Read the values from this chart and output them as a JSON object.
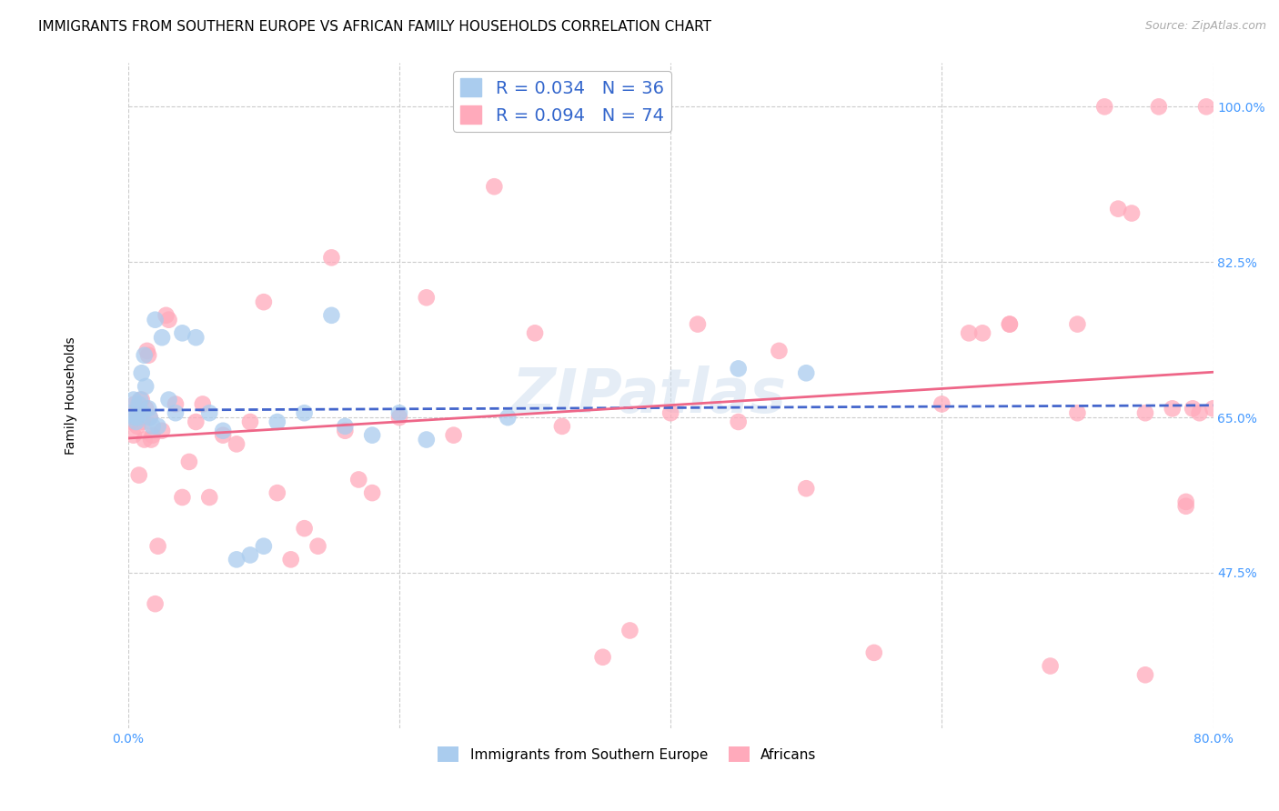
{
  "title": "IMMIGRANTS FROM SOUTHERN EUROPE VS AFRICAN FAMILY HOUSEHOLDS CORRELATION CHART",
  "source": "Source: ZipAtlas.com",
  "ylabel": "Family Households",
  "xlim": [
    0.0,
    80.0
  ],
  "ylim": [
    30.0,
    105.0
  ],
  "yticks": [
    47.5,
    65.0,
    82.5,
    100.0
  ],
  "xticks": [
    0.0,
    20.0,
    40.0,
    60.0,
    80.0
  ],
  "background_color": "#ffffff",
  "grid_color": "#cccccc",
  "series1_name": "Immigrants from Southern Europe",
  "series2_name": "Africans",
  "series1_color": "#aaccee",
  "series2_color": "#ffaabb",
  "series1_line_color": "#4466cc",
  "series2_line_color": "#ee6688",
  "series1_R": 0.034,
  "series1_N": 36,
  "series2_R": 0.094,
  "series2_N": 74,
  "series1_x": [
    0.2,
    0.4,
    0.5,
    0.6,
    0.7,
    0.8,
    0.9,
    1.0,
    1.1,
    1.2,
    1.3,
    1.5,
    1.6,
    1.8,
    2.0,
    2.2,
    2.5,
    3.0,
    3.5,
    4.0,
    5.0,
    6.0,
    7.0,
    8.0,
    9.0,
    10.0,
    11.0,
    13.0,
    15.0,
    16.0,
    18.0,
    20.0,
    22.0,
    28.0,
    45.0,
    50.0
  ],
  "series1_y": [
    65.5,
    67.0,
    65.0,
    64.5,
    65.0,
    66.5,
    67.0,
    70.0,
    65.5,
    72.0,
    68.5,
    66.0,
    65.0,
    64.0,
    76.0,
    64.0,
    74.0,
    67.0,
    65.5,
    74.5,
    74.0,
    65.5,
    63.5,
    49.0,
    49.5,
    50.5,
    64.5,
    65.5,
    76.5,
    64.0,
    63.0,
    65.5,
    62.5,
    65.0,
    70.5,
    70.0
  ],
  "series2_x": [
    0.2,
    0.4,
    0.5,
    0.6,
    0.7,
    0.8,
    0.9,
    1.0,
    1.1,
    1.2,
    1.3,
    1.4,
    1.5,
    1.6,
    1.7,
    1.8,
    2.0,
    2.2,
    2.5,
    2.8,
    3.0,
    3.5,
    4.0,
    4.5,
    5.0,
    5.5,
    6.0,
    7.0,
    8.0,
    9.0,
    10.0,
    11.0,
    12.0,
    13.0,
    14.0,
    15.0,
    16.0,
    17.0,
    18.0,
    20.0,
    22.0,
    24.0,
    27.0,
    30.0,
    32.0,
    35.0,
    37.0,
    40.0,
    42.0,
    45.0,
    48.0,
    50.0,
    55.0,
    60.0,
    63.0,
    65.0,
    68.0,
    70.0,
    72.0,
    73.0,
    74.0,
    75.0,
    76.0,
    77.0,
    78.0,
    78.5,
    79.0,
    79.5,
    80.0,
    62.0,
    65.0,
    70.0,
    75.0,
    78.0
  ],
  "series2_y": [
    64.5,
    63.0,
    66.5,
    65.5,
    64.0,
    58.5,
    65.5,
    67.0,
    64.5,
    62.5,
    66.0,
    72.5,
    72.0,
    65.0,
    62.5,
    63.0,
    44.0,
    50.5,
    63.5,
    76.5,
    76.0,
    66.5,
    56.0,
    60.0,
    64.5,
    66.5,
    56.0,
    63.0,
    62.0,
    64.5,
    78.0,
    56.5,
    49.0,
    52.5,
    50.5,
    83.0,
    63.5,
    58.0,
    56.5,
    65.0,
    78.5,
    63.0,
    91.0,
    74.5,
    64.0,
    38.0,
    41.0,
    65.5,
    75.5,
    64.5,
    72.5,
    57.0,
    38.5,
    66.5,
    74.5,
    75.5,
    37.0,
    75.5,
    100.0,
    88.5,
    88.0,
    65.5,
    100.0,
    66.0,
    55.5,
    66.0,
    65.5,
    100.0,
    66.0,
    74.5,
    75.5,
    65.5,
    36.0,
    55.0
  ],
  "watermark": "ZIPatlas",
  "title_fontsize": 11,
  "tick_fontsize": 10,
  "label_fontsize": 10
}
